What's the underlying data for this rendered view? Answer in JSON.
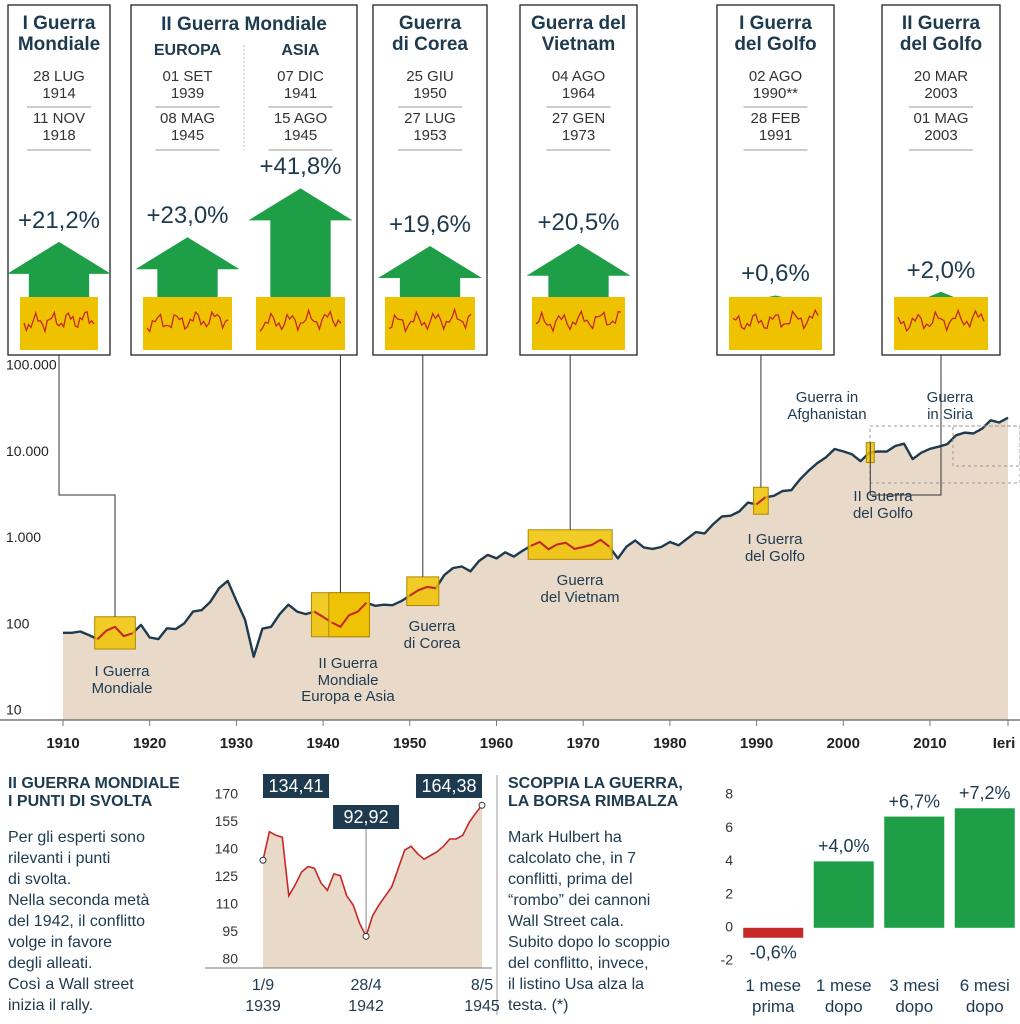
{
  "panels": [
    {
      "title": "I Guerra\nMondiale",
      "columns": [
        {
          "start": "28 LUG\n1914",
          "end": "11 NOV\n1918",
          "change": {
            "value": 21.2,
            "label": "+21,2%"
          }
        }
      ]
    },
    {
      "title": "II Guerra Mondiale",
      "columns": [
        {
          "name": "EUROPA",
          "start": "01 SET\n1939",
          "end": "08 MAG\n1945",
          "change": {
            "value": 23.0,
            "label": "+23,0%"
          }
        },
        {
          "name": "ASIA",
          "start": "07 DIC\n1941",
          "end": "15 AGO\n1945",
          "change": {
            "value": 41.8,
            "label": "+41,8%"
          }
        }
      ]
    },
    {
      "title": "Guerra\ndi Corea",
      "columns": [
        {
          "start": "25 GIU\n1950",
          "end": "27 LUG\n1953",
          "change": {
            "value": 19.6,
            "label": "+19,6%"
          }
        }
      ]
    },
    {
      "title": "Guerra del\nVietnam",
      "columns": [
        {
          "start": "04 AGO\n1964",
          "end": "27 GEN\n1973",
          "change": {
            "value": 20.5,
            "label": "+20,5%"
          }
        }
      ]
    },
    {
      "title": "I Guerra\ndel Golfo",
      "columns": [
        {
          "start": "02 AGO\n1990**",
          "end": "28 FEB\n1991",
          "change": {
            "value": 0.6,
            "label": "+0,6%"
          }
        }
      ]
    },
    {
      "title": "II Guerra\ndel Golfo",
      "columns": [
        {
          "start": "20 MAR\n2003",
          "end": "01 MAG\n2003",
          "change": {
            "value": 2.0,
            "label": "+2,0%"
          }
        }
      ]
    }
  ],
  "chart_data": [
    {
      "type": "line",
      "yscale": "log",
      "color": "#1d3a4f",
      "area_color": "#e9d9c9",
      "highlight_color": "#efc200",
      "highlight_line_color": "#c62828",
      "x": [
        1910,
        1911,
        1912,
        1913,
        1914,
        1915,
        1916,
        1917,
        1918,
        1919,
        1920,
        1921,
        1922,
        1923,
        1924,
        1925,
        1926,
        1927,
        1928,
        1929,
        1930,
        1931,
        1932,
        1933,
        1934,
        1935,
        1936,
        1937,
        1938,
        1939,
        1940,
        1941,
        1942,
        1943,
        1944,
        1945,
        1946,
        1947,
        1948,
        1949,
        1950,
        1951,
        1952,
        1953,
        1954,
        1955,
        1956,
        1957,
        1958,
        1959,
        1960,
        1961,
        1962,
        1963,
        1964,
        1965,
        1966,
        1967,
        1968,
        1969,
        1970,
        1971,
        1972,
        1973,
        1974,
        1975,
        1976,
        1977,
        1978,
        1979,
        1980,
        1981,
        1982,
        1983,
        1984,
        1985,
        1986,
        1987,
        1988,
        1989,
        1990,
        1991,
        1992,
        1993,
        1994,
        1995,
        1996,
        1997,
        1998,
        1999,
        2000,
        2001,
        2002,
        2003,
        2004,
        2005,
        2006,
        2007,
        2008,
        2009,
        2010,
        2011,
        2012,
        2013,
        2014,
        2015,
        2016,
        2017,
        2018,
        2019
      ],
      "series": [
        {
          "values": [
            85,
            85,
            88,
            80,
            72,
            90,
            100,
            78,
            84,
            105,
            75,
            72,
            96,
            94,
            110,
            150,
            156,
            195,
            280,
            340,
            200,
            120,
            45,
            95,
            100,
            140,
            180,
            150,
            140,
            150,
            130,
            112,
            100,
            136,
            150,
            190,
            175,
            180,
            178,
            198,
            230,
            265,
            290,
            280,
            400,
            480,
            500,
            440,
            580,
            680,
            620,
            730,
            650,
            760,
            870,
            960,
            790,
            900,
            940,
            800,
            840,
            890,
            1020,
            850,
            620,
            850,
            1000,
            830,
            800,
            840,
            960,
            880,
            1050,
            1250,
            1210,
            1550,
            1900,
            1940,
            2170,
            2750,
            2630,
            3170,
            3300,
            3750,
            3830,
            5100,
            6450,
            7900,
            9200,
            11500,
            10800,
            10000,
            8300,
            10450,
            10780,
            10720,
            12460,
            13260,
            8780,
            10430,
            11580,
            12220,
            13100,
            16580,
            17820,
            17420,
            19760,
            24720,
            23330,
            26500
          ]
        }
      ],
      "xlim": [
        1910,
        2019
      ],
      "xticks": [
        1910,
        1920,
        1930,
        1940,
        1950,
        1960,
        1970,
        1980,
        1990,
        2000,
        2010,
        {
          "value": 2019,
          "label": "Ieri"
        }
      ],
      "ylim": [
        10,
        100000
      ],
      "yticks": [
        10,
        100,
        {
          "value": 1000,
          "label": "1.000"
        },
        {
          "value": 10000,
          "label": "10.000"
        },
        {
          "value": 100000,
          "label": "100.000"
        }
      ],
      "annotations": [
        "I Guerra\nMondiale",
        "II Guerra\nMondiale\nEuropa e Asia",
        "Guerra\ndi Corea",
        "Guerra\ndel Vietnam",
        "I Guerra\ndel Golfo",
        "II Guerra\ndel Golfo",
        "Guerra in\nAfghanistan",
        "Guerra\nin Siria"
      ]
    },
    {
      "type": "line",
      "title": "II GUERRA MONDIALE\nI PUNTI DI SVOLTA",
      "text": "Per gli esperti sono\nrilevanti i punti\ndi svolta.\nNella seconda metà\ndel 1942, il conflitto\nvolge in favore\ndegli alleati.\nCosì a Wall street\ninizia il rally.",
      "color": "#c62828",
      "area_color": "#e9d9c9",
      "label_color": "#1d3a4f",
      "categories": [
        "1/9\n1939",
        null,
        null,
        null,
        null,
        null,
        null,
        null,
        null,
        null,
        null,
        null,
        null,
        null,
        null,
        null,
        "28/4\n1942",
        null,
        null,
        null,
        null,
        null,
        null,
        null,
        null,
        null,
        null,
        null,
        null,
        null,
        null,
        null,
        null,
        null,
        "8/5\n1945"
      ],
      "values": [
        134.41,
        150,
        148,
        147,
        115,
        121,
        128,
        131,
        130,
        122,
        118,
        127,
        126,
        115,
        110,
        100,
        92.92,
        104,
        110,
        115,
        120,
        130,
        140,
        142,
        138,
        135,
        137,
        139,
        142,
        146,
        146,
        148,
        155,
        160,
        164.38
      ],
      "value_labels": [
        "134,41",
        null,
        null,
        null,
        null,
        null,
        null,
        null,
        null,
        null,
        null,
        null,
        null,
        null,
        null,
        null,
        "92,92",
        null,
        null,
        null,
        null,
        null,
        null,
        null,
        null,
        null,
        null,
        null,
        null,
        null,
        null,
        null,
        null,
        null,
        "164,38"
      ],
      "ylim": [
        80,
        170
      ],
      "yticks": [
        80,
        95,
        110,
        125,
        140,
        155,
        170
      ]
    },
    {
      "type": "bar",
      "title": "SCOPPIA LA GUERRA,\nLA BORSA RIMBALZA",
      "text": "Mark Hulbert ha\ncalcolato che, in 7\nconflitti, prima del\n“rombo” dei cannoni\nWall Street cala.\nSubito dopo lo scoppio\ndel conflitto, invece,\nil listino Usa alza la\ntesta. (*)",
      "categories": [
        "1 mese\nprima",
        "1 mese\ndopo",
        "3 mesi\ndopo",
        "6 mesi\ndopo"
      ],
      "values": [
        -0.6,
        4.0,
        6.7,
        7.2
      ],
      "value_labels": [
        "-0,6%",
        "+4,0%",
        "+6,7%",
        "+7,2%"
      ],
      "colors": [
        "#c62828",
        "#1f9e48",
        "#1f9e48",
        "#1f9e48"
      ],
      "ylim": [
        -2,
        8
      ],
      "yticks": [
        -2,
        0,
        2,
        4,
        6,
        8
      ]
    }
  ]
}
